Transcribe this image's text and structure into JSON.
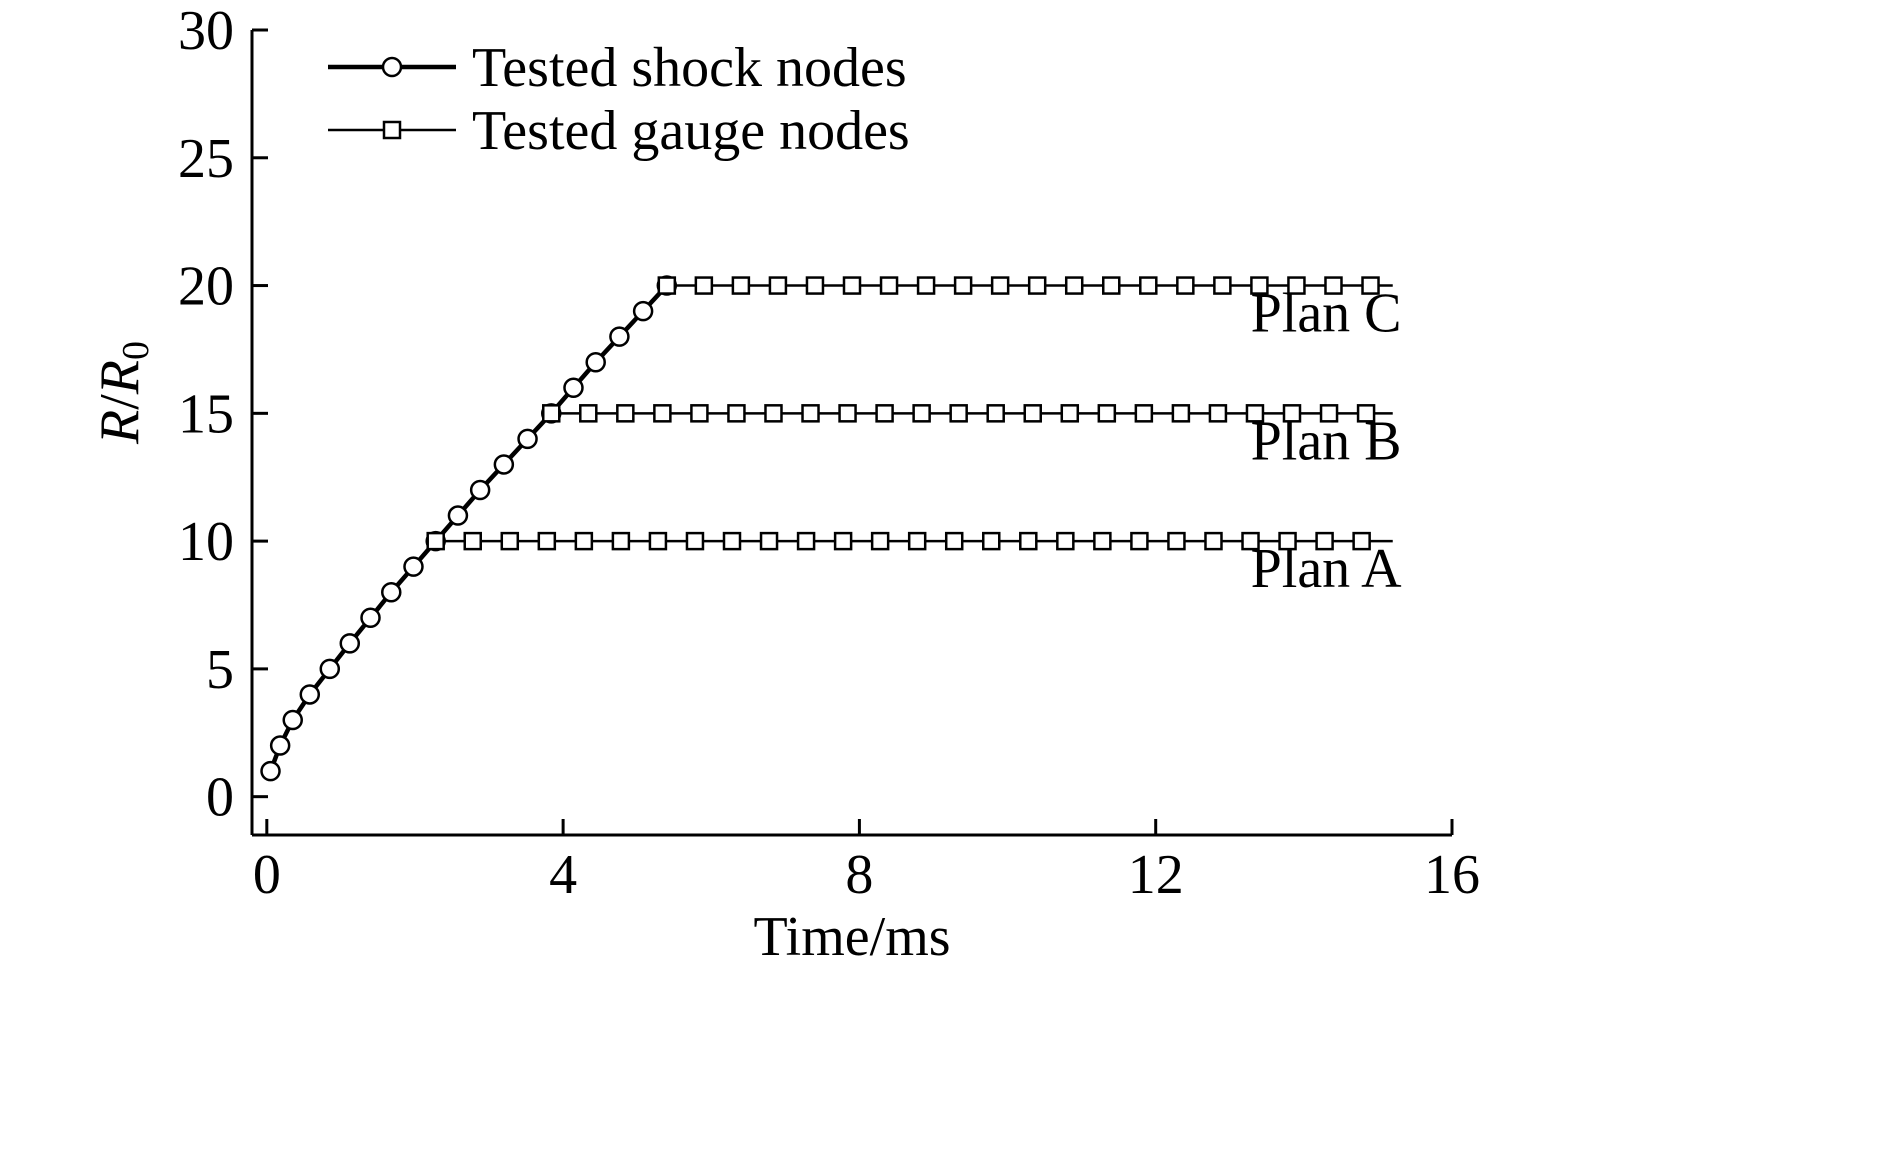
{
  "chart_data": {
    "type": "line",
    "title": "",
    "xlabel": "Time/ms",
    "ylabel_main": "R",
    "ylabel_sep": "/",
    "ylabel_sub_base": "R",
    "ylabel_subscript": "0",
    "xlim": [
      -0.2,
      16
    ],
    "ylim": [
      -1.5,
      30
    ],
    "xticks": [
      0,
      4,
      8,
      12,
      16
    ],
    "xtick_labels": [
      "0",
      "4",
      "8",
      "12",
      "16"
    ],
    "yticks": [
      0,
      5,
      10,
      15,
      20,
      25,
      30
    ],
    "ytick_labels": [
      "0",
      "5",
      "10",
      "15",
      "20",
      "25",
      "30"
    ],
    "grid": false,
    "legend_position": "top-left",
    "legend": [
      {
        "label": "Tested shock nodes",
        "marker": "circle",
        "style": "thick"
      },
      {
        "label": "Tested gauge nodes",
        "marker": "square",
        "style": "thin"
      }
    ],
    "series": [
      {
        "name": "Tested shock nodes",
        "marker": "circle",
        "x": [
          0.05,
          0.18,
          0.35,
          0.58,
          0.85,
          1.12,
          1.4,
          1.68,
          1.98,
          2.28,
          2.58,
          2.88,
          3.2,
          3.52,
          3.84,
          4.14,
          4.44,
          4.76,
          5.08,
          5.4
        ],
        "y": [
          1,
          2,
          3,
          4,
          5,
          6,
          7,
          8,
          9,
          10,
          11,
          12,
          13,
          14,
          15,
          16,
          17,
          18,
          19,
          20
        ]
      },
      {
        "name": "Tested gauge nodes",
        "plan": "Plan A",
        "marker": "square",
        "x_start": 2.28,
        "x_end": 15.2,
        "y": 10,
        "marker_x": [
          2.28,
          2.78,
          3.28,
          3.78,
          4.28,
          4.78,
          5.28,
          5.78,
          6.28,
          6.78,
          7.28,
          7.78,
          8.28,
          8.78,
          9.28,
          9.78,
          10.28,
          10.78,
          11.28,
          11.78,
          12.28,
          12.78,
          13.28,
          13.78,
          14.28,
          14.78
        ]
      },
      {
        "name": "Tested gauge nodes",
        "plan": "Plan B",
        "marker": "square",
        "x_start": 3.84,
        "x_end": 15.2,
        "y": 15,
        "marker_x": [
          3.84,
          4.34,
          4.84,
          5.34,
          5.84,
          6.34,
          6.84,
          7.34,
          7.84,
          8.34,
          8.84,
          9.34,
          9.84,
          10.34,
          10.84,
          11.34,
          11.84,
          12.34,
          12.84,
          13.34,
          13.84,
          14.34,
          14.84
        ]
      },
      {
        "name": "Tested gauge nodes",
        "plan": "Plan C",
        "marker": "square",
        "x_start": 5.4,
        "x_end": 15.2,
        "y": 20,
        "marker_x": [
          5.4,
          5.9,
          6.4,
          6.9,
          7.4,
          7.9,
          8.4,
          8.9,
          9.4,
          9.9,
          10.4,
          10.9,
          11.4,
          11.9,
          12.4,
          12.9,
          13.4,
          13.9,
          14.4,
          14.9
        ]
      }
    ],
    "annotations": [
      {
        "text": "Plan A",
        "x": 14.3,
        "y": 8.2
      },
      {
        "text": "Plan B",
        "x": 14.3,
        "y": 13.2
      },
      {
        "text": "Plan C",
        "x": 14.3,
        "y": 18.2
      }
    ]
  }
}
